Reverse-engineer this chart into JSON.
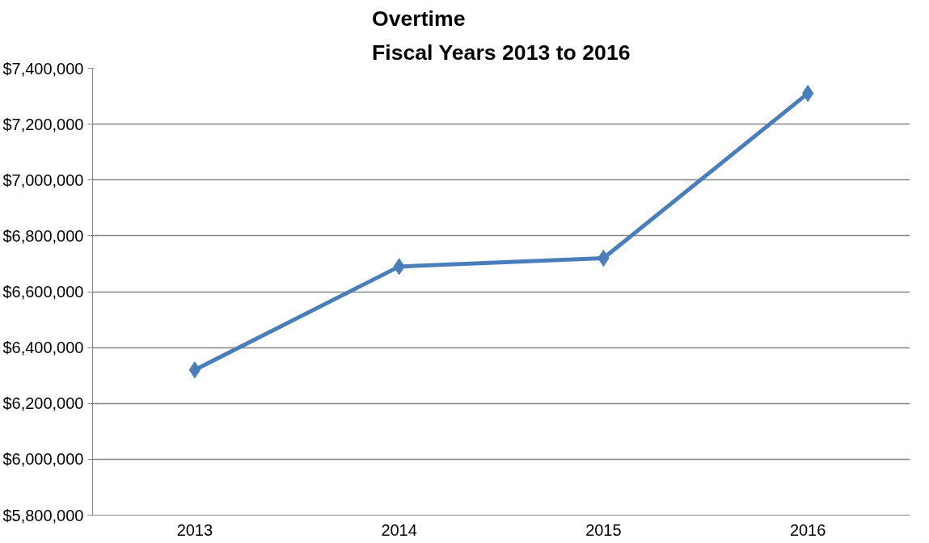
{
  "chart_data": {
    "type": "line",
    "title": "Overtime\nFiscal Years 2013 to 2016",
    "categories": [
      "2013",
      "2014",
      "2015",
      "2016"
    ],
    "series": [
      {
        "color": "#4a7ebb",
        "values": [
          6320000,
          6690000,
          6720000,
          7310000
        ]
      }
    ],
    "ylim": [
      5800000,
      7400000
    ],
    "yticks": [
      {
        "value": 5800000,
        "label": "$5,800,000"
      },
      {
        "value": 6000000,
        "label": "$6,000,000"
      },
      {
        "value": 6200000,
        "label": "$6,200,000"
      },
      {
        "value": 6400000,
        "label": "$6,400,000"
      },
      {
        "value": 6600000,
        "label": "$6,600,000"
      },
      {
        "value": 6800000,
        "label": "$6,800,000"
      },
      {
        "value": 7000000,
        "label": "$7,000,000"
      },
      {
        "value": 7200000,
        "label": "$7,200,000"
      },
      {
        "value": 7400000,
        "label": "$7,400,000"
      }
    ],
    "grid": "y",
    "marker": "diamond",
    "line_style": "solid"
  }
}
